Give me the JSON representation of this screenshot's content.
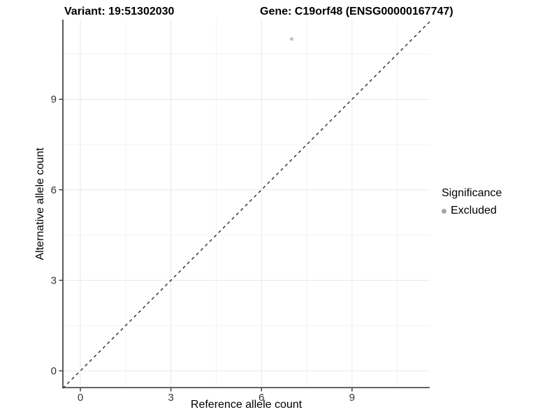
{
  "header": {
    "variant_title": "Variant: 19:51302030",
    "gene_title": "Gene: C19orf48 (ENSG00000167747)"
  },
  "chart_data": {
    "type": "scatter",
    "title_left": "Variant: 19:51302030",
    "title_right": "Gene: C19orf48 (ENSG00000167747)",
    "xlabel": "Reference allele count",
    "ylabel": "Alternative allele count",
    "x_ticks": [
      0,
      3,
      6,
      9
    ],
    "y_ticks": [
      0,
      3,
      6,
      9
    ],
    "x_minor_ticks": [
      1.5,
      4.5,
      7.5,
      10.5
    ],
    "y_minor_ticks": [
      1.5,
      4.5,
      7.5,
      10.5
    ],
    "xlim": [
      -0.58,
      11.57
    ],
    "ylim": [
      -0.58,
      11.64
    ],
    "grid": true,
    "points": [
      {
        "x": 7,
        "y": 11,
        "significance": "Excluded"
      }
    ],
    "reference_line": {
      "type": "identity",
      "style": "dashed",
      "slope": 1,
      "intercept": 0
    },
    "legend": {
      "title": "Significance",
      "position": "right",
      "items": [
        {
          "label": "Excluded",
          "color": "#a6a6a6"
        }
      ]
    },
    "colors": {
      "point": "#c0c0c0",
      "axis_line": "#333333",
      "tick_text": "#333333",
      "grid_major": "#e8e8e8",
      "grid_minor": "#f3f3f3",
      "reference_line": "#1a1a1a",
      "background": "#ffffff"
    }
  }
}
